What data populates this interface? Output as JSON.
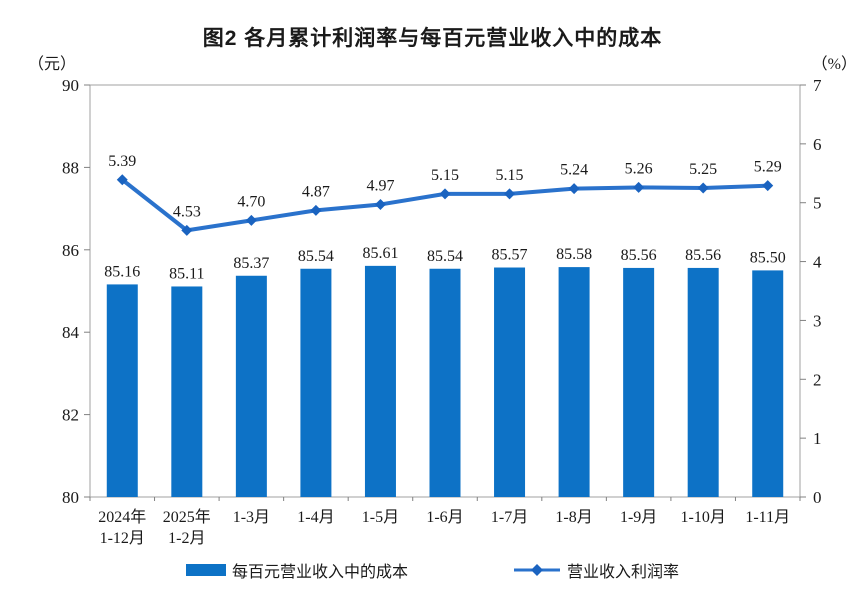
{
  "title": "图2 各月累计利润率与每百元营业收入中的成本",
  "left_axis_unit": "（元）",
  "right_axis_unit": "（%）",
  "legend": {
    "bar_label": "每百元营业收入中的成本",
    "line_label": "营业收入利润率"
  },
  "colors": {
    "bar": "#0d72c6",
    "line": "#2a72cc",
    "marker": "#1a63c0",
    "axis_border": "#a0a0a0",
    "tick": "#808080",
    "text": "#1a1a1a"
  },
  "chart_data": {
    "type": "bar",
    "combo": [
      "bar",
      "line"
    ],
    "title": "图2 各月累计利润率与每百元营业收入中的成本",
    "categories": [
      "2024年\n1-12月",
      "2025年\n1-2月",
      "1-3月",
      "1-4月",
      "1-5月",
      "1-6月",
      "1-7月",
      "1-8月",
      "1-9月",
      "1-10月",
      "1-11月"
    ],
    "series": [
      {
        "name": "每百元营业收入中的成本",
        "type": "bar",
        "axis": "left",
        "unit": "元",
        "values": [
          85.16,
          85.11,
          85.37,
          85.54,
          85.61,
          85.54,
          85.57,
          85.58,
          85.56,
          85.56,
          85.5
        ],
        "labels": [
          "85.16",
          "85.11",
          "85.37",
          "85.54",
          "85.61",
          "85.54",
          "85.57",
          "85.58",
          "85.56",
          "85.56",
          "85.50"
        ]
      },
      {
        "name": "营业收入利润率",
        "type": "line",
        "axis": "right",
        "unit": "%",
        "values": [
          5.39,
          4.53,
          4.7,
          4.87,
          4.97,
          5.15,
          5.15,
          5.24,
          5.26,
          5.25,
          5.29
        ],
        "labels": [
          "5.39",
          "4.53",
          "4.70",
          "4.87",
          "4.97",
          "5.15",
          "5.15",
          "5.24",
          "5.26",
          "5.25",
          "5.29"
        ]
      }
    ],
    "left_axis": {
      "label": "（元）",
      "min": 80,
      "max": 90,
      "ticks": [
        90,
        88,
        86,
        84,
        82,
        80
      ]
    },
    "right_axis": {
      "label": "（%）",
      "min": 0,
      "max": 7,
      "ticks": [
        7,
        6,
        5,
        4,
        3,
        2,
        1,
        0
      ]
    },
    "grid": false,
    "legend_position": "bottom"
  }
}
